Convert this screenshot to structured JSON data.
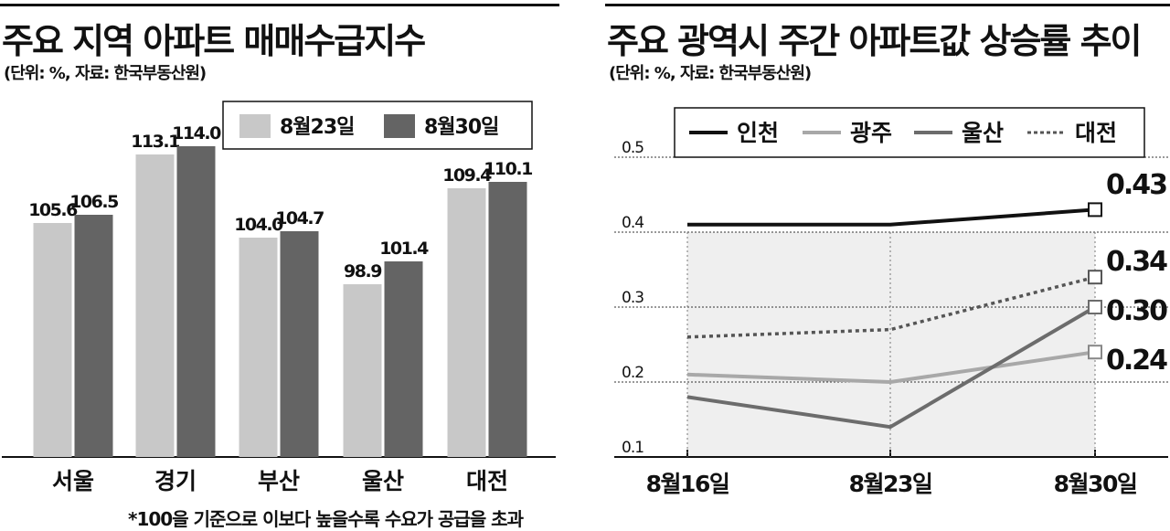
{
  "left": {
    "title": "주요 지역 아파트 매매수급지수",
    "subtitle": "(단위: %, 자료: 한국부동산원)",
    "footnote": "*100을 기준으로 이보다 높을수록 수요가 공급을 초과"
  },
  "right": {
    "title": "주요 광역시 주간 아파트값 상승률 추이",
    "subtitle": "(단위: %, 자료: 한국부동산원)"
  },
  "colors": {
    "bar_light": "#c8c8c8",
    "bar_dark": "#646464",
    "incheon": "#111111",
    "gwangju": "#a8a8a8",
    "ulsan": "#6c6c6c",
    "daejeon": "#555555",
    "plot_bg": "#efefef"
  },
  "chart_data": [
    {
      "type": "bar",
      "categories": [
        "서울",
        "경기",
        "부산",
        "울산",
        "대전"
      ],
      "series": [
        {
          "name": "8월23일",
          "values": [
            105.6,
            113.1,
            104.0,
            98.9,
            109.4
          ],
          "labels": [
            "105.6",
            "113.1",
            "104.0",
            "98.9",
            "109.4"
          ]
        },
        {
          "name": "8월30일",
          "values": [
            106.5,
            114.0,
            104.7,
            101.4,
            110.1
          ],
          "labels": [
            "106.5",
            "114.0",
            "104.7",
            "101.4",
            "110.1"
          ]
        }
      ],
      "ylim": [
        80,
        116
      ],
      "legend": "top-right",
      "grid": false
    },
    {
      "type": "line",
      "x": [
        "8월16일",
        "8월23일",
        "8월30일"
      ],
      "series": [
        {
          "name": "인천",
          "values": [
            0.41,
            0.41,
            0.43
          ],
          "style": "solid",
          "end_label": "0.43"
        },
        {
          "name": "광주",
          "values": [
            0.21,
            0.2,
            0.24
          ],
          "style": "solid",
          "end_label": "0.24"
        },
        {
          "name": "울산",
          "values": [
            0.18,
            0.14,
            0.3
          ],
          "style": "solid",
          "end_label": "0.30"
        },
        {
          "name": "대전",
          "values": [
            0.26,
            0.27,
            0.34
          ],
          "style": "dotted",
          "end_label": "0.34"
        }
      ],
      "yticks": [
        "0.1",
        "0.2",
        "0.3",
        "0.4",
        "0.5"
      ],
      "ylim": [
        0.1,
        0.5
      ],
      "legend": "top",
      "grid": true
    }
  ]
}
